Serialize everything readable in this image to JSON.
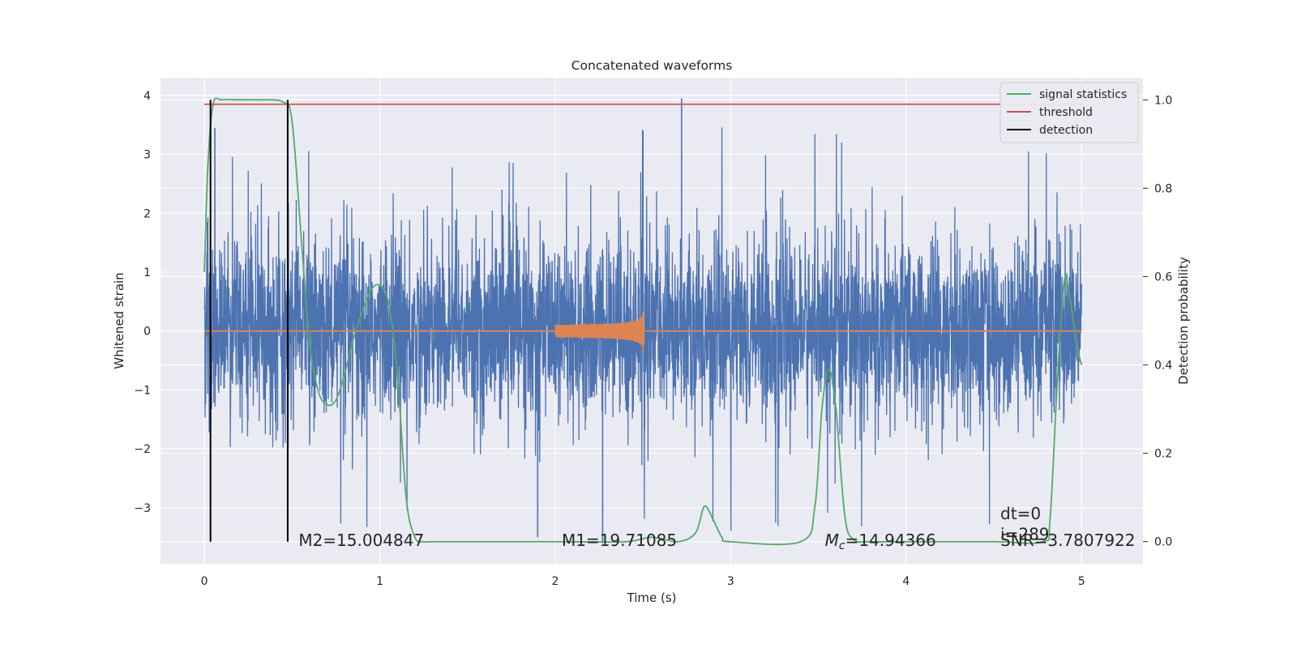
{
  "chart_data": {
    "type": "line",
    "title": "Concatenated waveforms",
    "xlabel": "Time (s)",
    "ylabel": "Whitened strain",
    "y2label": "Detection probability",
    "xlim": [
      -0.25,
      5.35
    ],
    "ylim": [
      -3.95,
      4.3
    ],
    "y2lim": [
      -0.05,
      1.05
    ],
    "xticks": [
      0,
      1,
      2,
      3,
      4,
      5
    ],
    "yticks": [
      -3,
      -2,
      -1,
      0,
      1,
      2,
      3,
      4
    ],
    "y2ticks": [
      0.0,
      0.2,
      0.4,
      0.6,
      0.8,
      1.0
    ],
    "grid": true,
    "legend_position": "top-right",
    "series": [
      {
        "name": "",
        "description": "whitened strain data",
        "color": "#4c72b0",
        "axis": "left",
        "x_range": [
          0,
          5
        ],
        "envelope_amplitude": 1.0,
        "spike_max": 3.95,
        "spike_min": -3.6
      },
      {
        "name": "",
        "description": "injected waveform",
        "color": "#dd8452",
        "axis": "left",
        "x": [
          2.0,
          2.1,
          2.2,
          2.3,
          2.4,
          2.45,
          2.48,
          2.5,
          2.52,
          2.55
        ],
        "envelope": [
          0.1,
          0.11,
          0.13,
          0.16,
          0.22,
          0.3,
          0.45,
          0.6,
          0.1,
          0.0
        ]
      },
      {
        "name": "signal statistics",
        "color": "#55a868",
        "axis": "right",
        "x": [
          0.0,
          0.02,
          0.05,
          0.1,
          0.2,
          0.3,
          0.45,
          0.5,
          0.55,
          0.6,
          0.65,
          0.7,
          0.75,
          0.8,
          0.85,
          0.9,
          0.95,
          1.0,
          1.05,
          1.1,
          1.15,
          1.2,
          1.25,
          1.3,
          1.5,
          2.0,
          2.4,
          2.55,
          2.7,
          2.8,
          2.85,
          2.9,
          2.95,
          3.0,
          3.4,
          3.48,
          3.52,
          3.56,
          3.6,
          3.65,
          3.7,
          3.8,
          4.0,
          4.5,
          4.78,
          4.82,
          4.86,
          4.9,
          4.93,
          4.97,
          5.0
        ],
        "y": [
          0.61,
          0.85,
          0.99,
          1.0,
          1.0,
          1.0,
          0.995,
          0.95,
          0.7,
          0.45,
          0.34,
          0.31,
          0.32,
          0.38,
          0.46,
          0.52,
          0.57,
          0.58,
          0.54,
          0.38,
          0.1,
          0.01,
          0.0,
          0.0,
          0.0,
          0.0,
          0.0,
          0.01,
          0.0,
          0.02,
          0.08,
          0.05,
          0.01,
          0.0,
          0.0,
          0.08,
          0.3,
          0.39,
          0.3,
          0.06,
          0.005,
          0.0,
          0.0,
          0.0,
          0.0,
          0.05,
          0.35,
          0.585,
          0.56,
          0.45,
          0.4
        ]
      },
      {
        "name": "threshold",
        "color": "#c44e52",
        "axis": "right",
        "x": [
          0,
          5
        ],
        "y": [
          0.99,
          0.99
        ]
      },
      {
        "name": "detection",
        "color": "#000000",
        "axis": "right",
        "vlines_x": [
          0.035,
          0.475
        ],
        "y_span": [
          0.0,
          1.0
        ]
      }
    ],
    "annotations": [
      {
        "text": "M2=15.004847",
        "x": 0.5,
        "y": -3.55
      },
      {
        "text": "M1=19.71085",
        "x": 2.0,
        "y": -3.55
      },
      {
        "text": "=14.94366",
        "prefix_symbol": "Mc",
        "x": 3.5,
        "y": -3.55
      },
      {
        "text": "dt=0",
        "x": 4.5,
        "y": -3.1
      },
      {
        "text": "i=289",
        "x": 4.5,
        "y": -3.45
      },
      {
        "text": "SNR=3.7807922",
        "x": 4.5,
        "y": -3.55
      }
    ]
  }
}
